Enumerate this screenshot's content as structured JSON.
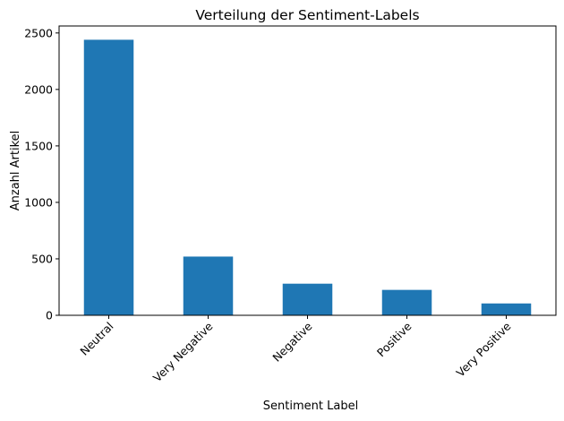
{
  "chart_data": {
    "type": "bar",
    "title": "Verteilung der Sentiment-Labels",
    "xlabel": "Sentiment Label",
    "ylabel": "Anzahl Artikel",
    "categories": [
      "Neutral",
      "Very Negative",
      "Negative",
      "Positive",
      "Very Positive"
    ],
    "values": [
      2440,
      520,
      280,
      225,
      105
    ],
    "ylim": [
      0,
      2562
    ],
    "yticks": [
      0,
      500,
      1000,
      1500,
      2000,
      2500
    ],
    "ytick_labels": [
      "0",
      "500",
      "1000",
      "1500",
      "2000",
      "2500"
    ],
    "bar_color": "#1f77b4",
    "grid": false,
    "legend": false,
    "xtick_rotation": 45
  }
}
